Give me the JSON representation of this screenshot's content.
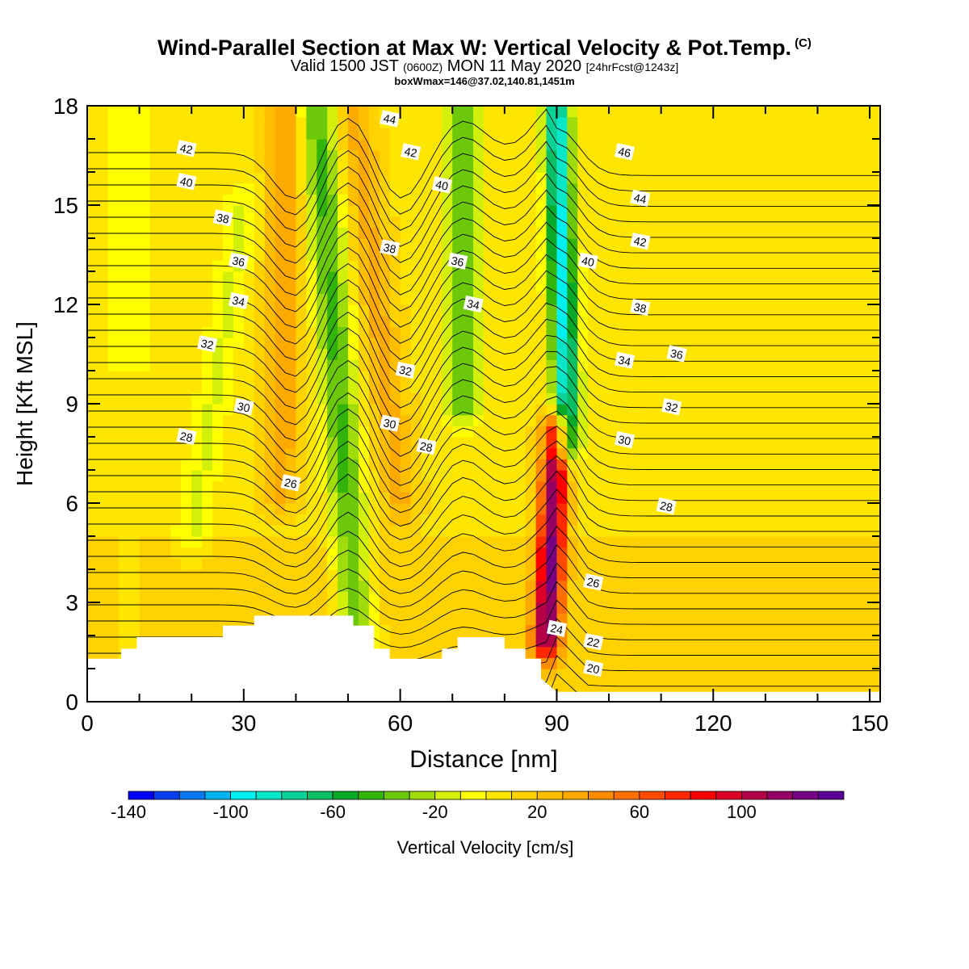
{
  "header": {
    "title_main": "Wind-Parallel Section at Max W: Vertical Velocity & Pot.Temp.",
    "title_mark": "(C)",
    "valid_prefix": "Valid 1500 JST",
    "valid_zulu": "(0600Z)",
    "valid_date": "MON 11 May 2020",
    "forecast_tag": "[24hrFcst@1243z]",
    "box_info": "boxWmax=146@37.02,140.81,1451m"
  },
  "colorbar": {
    "label": "Vertical Velocity [cm/s]",
    "tick_labels": [
      "-140",
      "-100",
      "-60",
      "-20",
      "20",
      "60",
      "100"
    ],
    "colors": [
      "#0000f5",
      "#0a3cf0",
      "#0a78f0",
      "#00b4f0",
      "#00f0f0",
      "#0ae6c8",
      "#0ad296",
      "#0abe64",
      "#0aaa28",
      "#32b40a",
      "#6ec80a",
      "#a0dc0a",
      "#d2f00a",
      "#ffff00",
      "#ffe600",
      "#ffd200",
      "#ffbe00",
      "#ffaa00",
      "#ff8c00",
      "#ff6e00",
      "#ff4b00",
      "#ff2800",
      "#ff0000",
      "#dc0028",
      "#b40046",
      "#960064",
      "#780082",
      "#5a0096"
    ]
  },
  "chart_data": {
    "type": "heatmap",
    "xlabel": "Distance [nm]",
    "ylabel": "Height [Kft MSL]",
    "xlim": [
      0,
      152
    ],
    "ylim": [
      0,
      18
    ],
    "x_ticks": [
      0,
      30,
      60,
      90,
      120,
      150
    ],
    "y_ticks": [
      0,
      3,
      6,
      9,
      12,
      15,
      18
    ],
    "field": "vertical velocity [cm/s]",
    "velocity_cores": [
      {
        "x_base": 37,
        "x_top": 38,
        "y_from": 6.5,
        "y_to": 18,
        "w": 30
      },
      {
        "x_base": 52,
        "x_top": 44,
        "y_from": 1.5,
        "y_to": 18,
        "w": -50
      },
      {
        "x_base": 60,
        "x_top": 51,
        "y_from": 6,
        "y_to": 18,
        "w": 25
      },
      {
        "x_base": 72,
        "x_top": 72,
        "y_from": 9,
        "y_to": 18,
        "w": -45
      },
      {
        "x_base": 88,
        "x_top": 90,
        "y_from": 2,
        "y_to": 8,
        "w": 110
      },
      {
        "x_base": 92,
        "x_top": 90,
        "y_from": 8,
        "y_to": 18,
        "w": -100
      },
      {
        "x_base": 20,
        "x_top": 30,
        "y_from": 5,
        "y_to": 15,
        "w": -20
      }
    ],
    "terrain_height_kft": [
      [
        0,
        1.3
      ],
      [
        6.5,
        1.3
      ],
      [
        6.5,
        1.6
      ],
      [
        9.5,
        1.6
      ],
      [
        9.5,
        1.95
      ],
      [
        26,
        1.95
      ],
      [
        26,
        2.3
      ],
      [
        32,
        2.3
      ],
      [
        32,
        2.6
      ],
      [
        51,
        2.6
      ],
      [
        51,
        2.3
      ],
      [
        55,
        2.3
      ],
      [
        55,
        1.6
      ],
      [
        58,
        1.6
      ],
      [
        58,
        1.3
      ],
      [
        68,
        1.3
      ],
      [
        68,
        1.6
      ],
      [
        71,
        1.6
      ],
      [
        71,
        1.95
      ],
      [
        80,
        1.95
      ],
      [
        80,
        1.6
      ],
      [
        84,
        1.6
      ],
      [
        84,
        1.3
      ],
      [
        87,
        1.3
      ],
      [
        87,
        0.7
      ],
      [
        90,
        0.3
      ],
      [
        152,
        0.3
      ]
    ],
    "theta_contour_labels": [
      {
        "text": "42",
        "x": 19,
        "y": 16.7
      },
      {
        "text": "40",
        "x": 19,
        "y": 15.7
      },
      {
        "text": "38",
        "x": 26,
        "y": 14.6
      },
      {
        "text": "36",
        "x": 29,
        "y": 13.3
      },
      {
        "text": "34",
        "x": 29,
        "y": 12.1
      },
      {
        "text": "32",
        "x": 23,
        "y": 10.8
      },
      {
        "text": "30",
        "x": 30,
        "y": 8.9
      },
      {
        "text": "28",
        "x": 19,
        "y": 8.0
      },
      {
        "text": "26",
        "x": 39,
        "y": 6.6
      },
      {
        "text": "44",
        "x": 58,
        "y": 17.6
      },
      {
        "text": "42",
        "x": 62,
        "y": 16.6
      },
      {
        "text": "40",
        "x": 68,
        "y": 15.6
      },
      {
        "text": "38",
        "x": 58,
        "y": 13.7
      },
      {
        "text": "36",
        "x": 71,
        "y": 13.3
      },
      {
        "text": "34",
        "x": 74,
        "y": 12.0
      },
      {
        "text": "32",
        "x": 61,
        "y": 10.0
      },
      {
        "text": "30",
        "x": 58,
        "y": 8.4
      },
      {
        "text": "28",
        "x": 65,
        "y": 7.7
      },
      {
        "text": "46",
        "x": 103,
        "y": 16.6
      },
      {
        "text": "44",
        "x": 106,
        "y": 15.2
      },
      {
        "text": "42",
        "x": 106,
        "y": 13.9
      },
      {
        "text": "40",
        "x": 96,
        "y": 13.3
      },
      {
        "text": "38",
        "x": 106,
        "y": 11.9
      },
      {
        "text": "36",
        "x": 113,
        "y": 10.5
      },
      {
        "text": "34",
        "x": 103,
        "y": 10.3
      },
      {
        "text": "32",
        "x": 112,
        "y": 8.9
      },
      {
        "text": "30",
        "x": 103,
        "y": 7.9
      },
      {
        "text": "28",
        "x": 111,
        "y": 5.9
      },
      {
        "text": "26",
        "x": 97,
        "y": 3.6
      },
      {
        "text": "24",
        "x": 90,
        "y": 2.2
      },
      {
        "text": "22",
        "x": 97,
        "y": 1.8
      },
      {
        "text": "20",
        "x": 97,
        "y": 1.0
      }
    ]
  }
}
